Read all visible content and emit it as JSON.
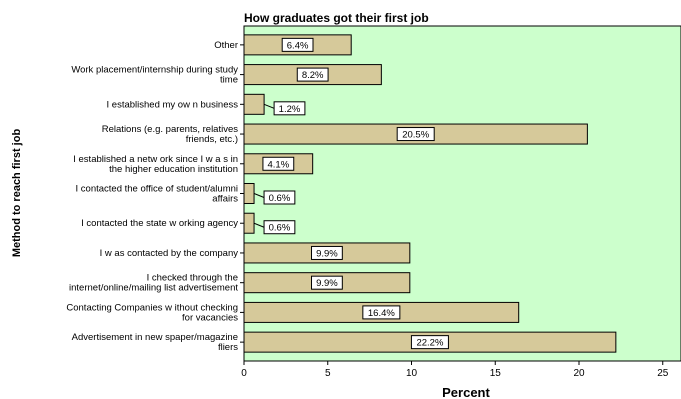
{
  "chart_data": {
    "type": "bar",
    "orientation": "horizontal",
    "title": "How graduates got their first job",
    "xlabel": "Percent",
    "ylabel": "Method to reach first job",
    "xlim": [
      0,
      26
    ],
    "xticks": [
      0,
      5,
      10,
      15,
      20,
      25
    ],
    "grid": false,
    "categories": [
      [
        "Other"
      ],
      [
        "Work placement/internship during study",
        "time"
      ],
      [
        "I established my ow n business"
      ],
      [
        "Relations (e.g. parents, relatives",
        "friends, etc.)"
      ],
      [
        "I established a netw ork since I w a s in",
        "the higher education institution"
      ],
      [
        "I contacted the office of student/alumni",
        "affairs"
      ],
      [
        "I contacted the state w orking agency"
      ],
      [
        "I w as contacted by the company"
      ],
      [
        "I checked through the",
        "internet/online/mailing list advertisement"
      ],
      [
        "Contacting Companies w ithout checking",
        "for vacancies"
      ],
      [
        "Advertisement in new spaper/magazine",
        "fliers"
      ]
    ],
    "values": [
      6.4,
      8.2,
      1.2,
      20.5,
      4.1,
      0.6,
      0.6,
      9.9,
      9.9,
      16.4,
      22.2
    ],
    "data_labels": [
      "6.4%",
      "8.2%",
      "1.2%",
      "20.5%",
      "4.1%",
      "0.6%",
      "0.6%",
      "9.9%",
      "9.9%",
      "16.4%",
      "22.2%"
    ],
    "colors": {
      "plot_background": "#ccffcc",
      "bar_fill": "#d6c99a",
      "bar_stroke": "#000000",
      "label_box": "#ffffff"
    }
  }
}
